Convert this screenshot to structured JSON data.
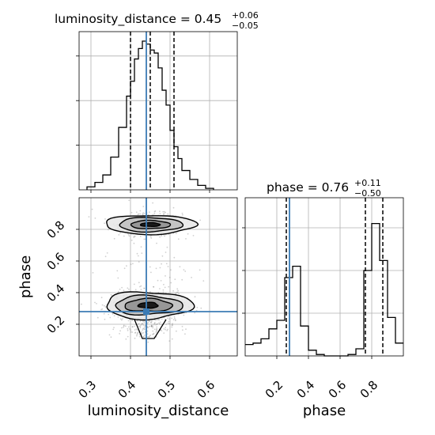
{
  "chart_data": {
    "type": "corner",
    "parameters": [
      "luminosity_distance",
      "phase"
    ],
    "titles": [
      {
        "param": "luminosity_distance",
        "median": "0.45",
        "plus": "+0.06",
        "minus": "−0.05"
      },
      {
        "param": "phase",
        "median": "0.76",
        "plus": "+0.11",
        "minus": "−0.50"
      }
    ],
    "truth": {
      "luminosity_distance": 0.44,
      "phase": 0.28
    },
    "truth_color": "#3b7bb5",
    "grid": true,
    "luminosity_distance_hist": {
      "range": [
        0.27,
        0.67
      ],
      "bin_edges": [
        0.29,
        0.31,
        0.33,
        0.35,
        0.37,
        0.39,
        0.4,
        0.41,
        0.42,
        0.43,
        0.44,
        0.45,
        0.46,
        0.47,
        0.48,
        0.49,
        0.5,
        0.51,
        0.52,
        0.53,
        0.55,
        0.57,
        0.59,
        0.61
      ],
      "counts": [
        0.02,
        0.05,
        0.1,
        0.22,
        0.42,
        0.63,
        0.73,
        0.88,
        0.95,
        1.0,
        0.98,
        0.94,
        0.92,
        0.82,
        0.67,
        0.57,
        0.4,
        0.29,
        0.21,
        0.13,
        0.07,
        0.03,
        0.01
      ],
      "quantiles": [
        0.4,
        0.45,
        0.51
      ]
    },
    "phase_hist": {
      "range": [
        0.0,
        1.0
      ],
      "bin_edges": [
        0.0,
        0.05,
        0.1,
        0.15,
        0.2,
        0.25,
        0.3,
        0.35,
        0.4,
        0.45,
        0.5,
        0.55,
        0.6,
        0.65,
        0.7,
        0.75,
        0.8,
        0.85,
        0.9,
        0.95,
        1.0
      ],
      "counts": [
        0.08,
        0.09,
        0.12,
        0.19,
        0.25,
        0.55,
        0.63,
        0.21,
        0.04,
        0.01,
        0.0,
        0.0,
        0.0,
        0.01,
        0.05,
        0.6,
        0.93,
        0.67,
        0.27,
        0.09
      ],
      "quantiles": [
        0.26,
        0.76,
        0.87
      ]
    },
    "joint": {
      "xlim": [
        0.27,
        0.67
      ],
      "ylim": [
        0.0,
        1.0
      ],
      "modes": [
        {
          "center": [
            0.45,
            0.83
          ],
          "spread": [
            0.04,
            0.035
          ],
          "contours": [
            [
              0.025,
              0.012
            ],
            [
              0.05,
              0.026
            ],
            [
              0.08,
              0.045
            ],
            [
              0.115,
              0.06
            ]
          ]
        },
        {
          "center": [
            0.445,
            0.32
          ],
          "spread": [
            0.045,
            0.045
          ],
          "contours": [
            [
              0.025,
              0.018
            ],
            [
              0.06,
              0.04
            ],
            [
              0.085,
              0.06
            ],
            [
              0.11,
              0.085
            ]
          ]
        }
      ],
      "tail": {
        "x": 0.44,
        "y_range": [
          0.1,
          0.25
        ]
      }
    },
    "x_ticks": {
      "luminosity_distance": [
        "0.3",
        "0.4",
        "0.5",
        "0.6"
      ],
      "phase": [
        "0.2",
        "0.4",
        "0.6",
        "0.8"
      ]
    },
    "y_ticks": {
      "phase": [
        "0.2",
        "0.4",
        "0.6",
        "0.8"
      ]
    },
    "xlabels": [
      "luminosity_distance",
      "phase"
    ],
    "ylabel": "phase"
  }
}
